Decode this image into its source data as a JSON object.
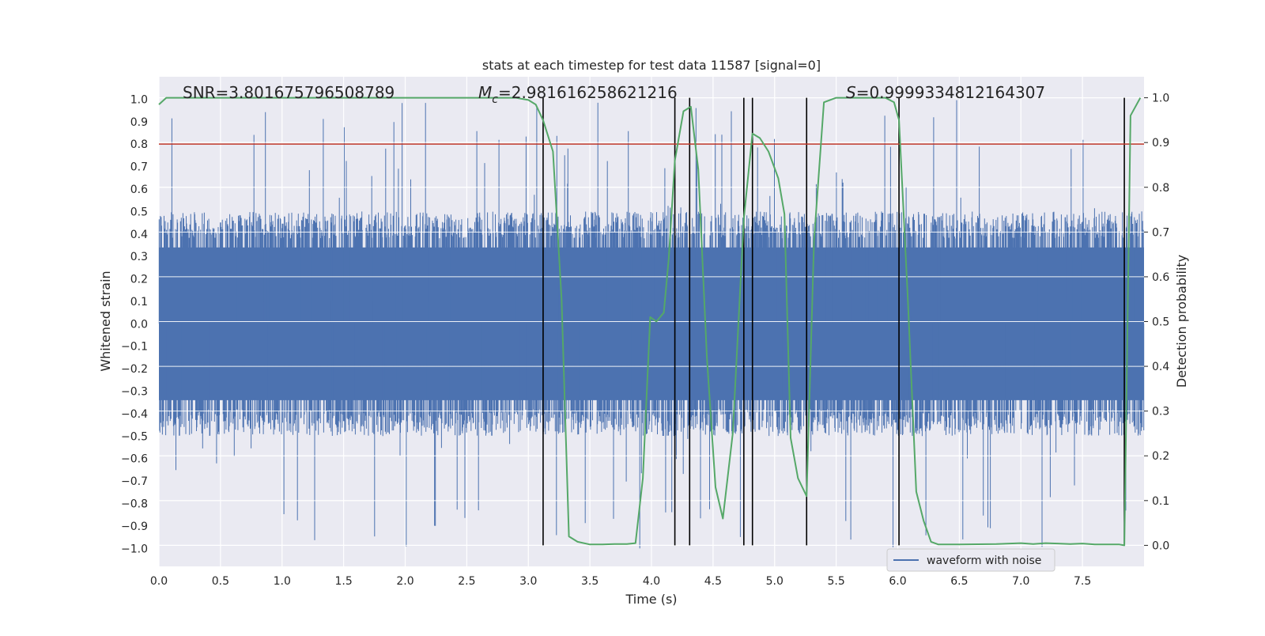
{
  "chart_data": {
    "type": "line",
    "title": "stats at each timestep for test data 11587 [signal=0]",
    "xlabel": "Time (s)",
    "ylabel": "Whitened strain",
    "y2label": "Detection probability",
    "xlim": [
      0.0,
      8.0
    ],
    "ylim": [
      -1.08,
      1.1
    ],
    "y2lim": [
      -0.047,
      1.047
    ],
    "x_ticks": [
      0.0,
      0.5,
      1.0,
      1.5,
      2.0,
      2.5,
      3.0,
      3.5,
      4.0,
      4.5,
      5.0,
      5.5,
      6.0,
      6.5,
      7.0,
      7.5
    ],
    "y_ticks": [
      -1.0,
      -0.9,
      -0.8,
      -0.7,
      -0.6,
      -0.5,
      -0.4,
      -0.3,
      -0.2,
      -0.1,
      0.0,
      0.1,
      0.2,
      0.3,
      0.4,
      0.5,
      0.6,
      0.7,
      0.8,
      0.9,
      1.0
    ],
    "y2_ticks": [
      0.0,
      0.1,
      0.2,
      0.3,
      0.4,
      0.5,
      0.6,
      0.7,
      0.8,
      0.9,
      1.0
    ],
    "annotations": {
      "snr": "SNR=3.801675796508789",
      "mc_symbol": "M",
      "mc_sub": "c",
      "mc_value": "=2.981616258621216",
      "s_symbol": "S",
      "s_value": "=0.9999334812164307"
    },
    "threshold": {
      "value": 0.8,
      "axis": "left",
      "color": "#c0392b"
    },
    "vertical_lines": [
      3.12,
      4.19,
      4.31,
      4.75,
      4.82,
      5.26,
      6.01,
      7.84
    ],
    "waveform": {
      "name": "waveform with noise",
      "color": "#4c72b0",
      "n_samples": 2400,
      "core_amplitude": 0.4,
      "spike_max": 1.0,
      "note": "dense gaussian-like noise; rendered procedurally"
    },
    "probability": {
      "name": "detection probability",
      "color": "#55a868",
      "x": [
        0.0,
        0.06,
        0.5,
        1.0,
        1.5,
        2.0,
        2.5,
        2.9,
        3.0,
        3.06,
        3.12,
        3.2,
        3.27,
        3.33,
        3.4,
        3.5,
        3.6,
        3.7,
        3.8,
        3.87,
        3.93,
        3.99,
        4.04,
        4.1,
        4.14,
        4.19,
        4.26,
        4.32,
        4.38,
        4.45,
        4.52,
        4.58,
        4.66,
        4.75,
        4.82,
        4.88,
        4.95,
        5.03,
        5.08,
        5.13,
        5.19,
        5.26,
        5.32,
        5.4,
        5.5,
        5.6,
        5.7,
        5.8,
        5.9,
        5.97,
        6.01,
        6.08,
        6.15,
        6.21,
        6.27,
        6.33,
        6.5,
        6.8,
        7.0,
        7.1,
        7.2,
        7.3,
        7.4,
        7.5,
        7.6,
        7.7,
        7.8,
        7.84,
        7.89,
        7.97
      ],
      "values": [
        0.985,
        1.0,
        1.0,
        1.0,
        1.0,
        1.0,
        1.0,
        1.0,
        0.995,
        0.985,
        0.95,
        0.88,
        0.55,
        0.02,
        0.008,
        0.002,
        0.002,
        0.003,
        0.003,
        0.005,
        0.15,
        0.51,
        0.5,
        0.52,
        0.64,
        0.86,
        0.97,
        0.98,
        0.84,
        0.42,
        0.13,
        0.06,
        0.25,
        0.73,
        0.92,
        0.91,
        0.88,
        0.82,
        0.74,
        0.24,
        0.15,
        0.11,
        0.68,
        0.99,
        1.0,
        1.0,
        1.0,
        1.0,
        1.0,
        0.99,
        0.95,
        0.56,
        0.12,
        0.055,
        0.008,
        0.002,
        0.002,
        0.003,
        0.005,
        0.003,
        0.005,
        0.004,
        0.003,
        0.004,
        0.002,
        0.002,
        0.002,
        0.0,
        0.96,
        1.0
      ]
    },
    "legend": {
      "location": "bottom-right",
      "entries": [
        "waveform with noise"
      ]
    },
    "grid": true
  }
}
